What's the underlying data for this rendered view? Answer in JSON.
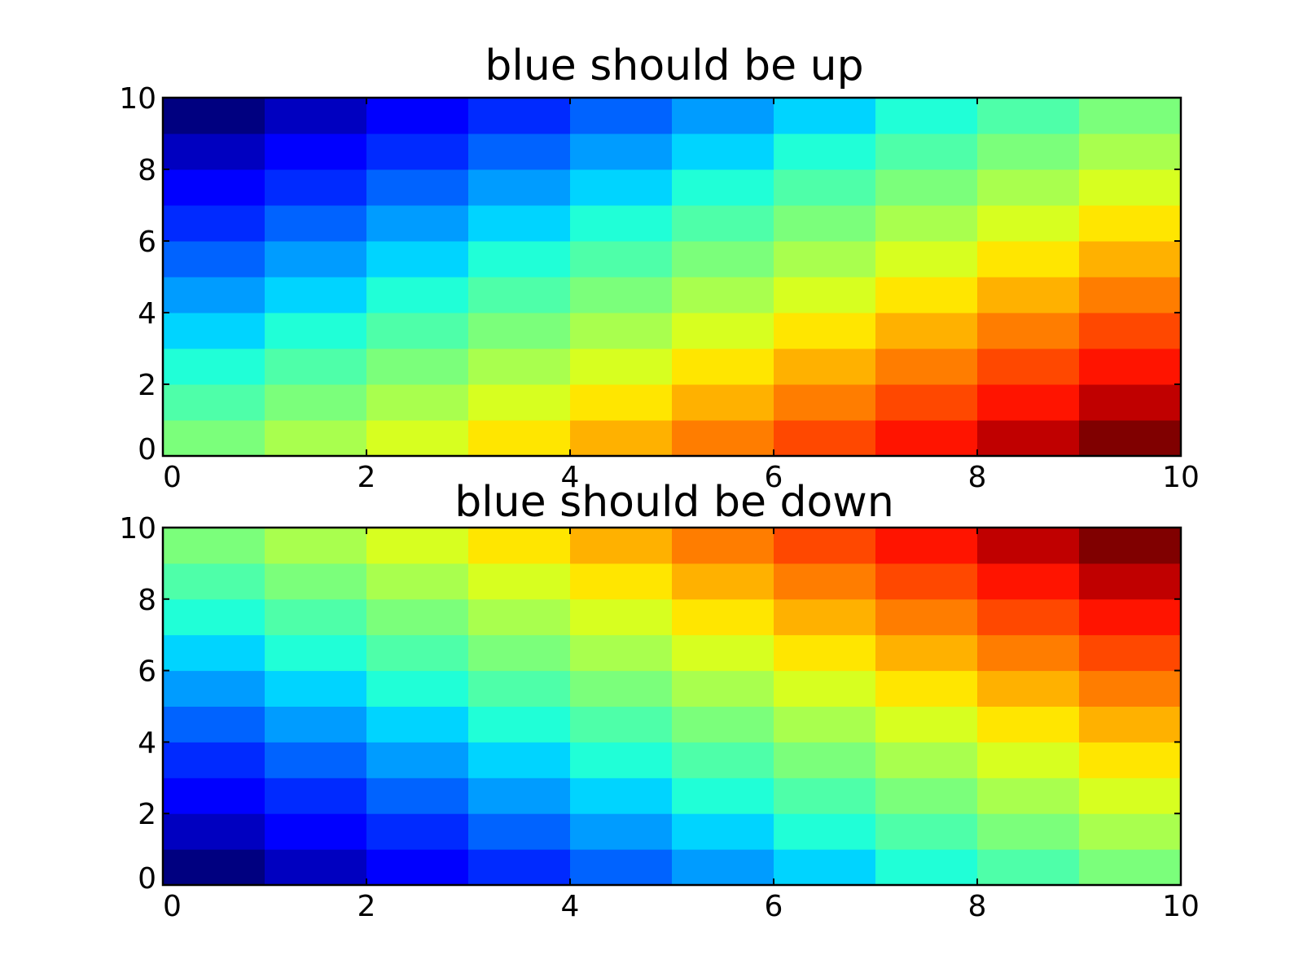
{
  "chart_data": [
    {
      "type": "heatmap",
      "title": "blue should be up",
      "colormap": "jet",
      "origin": "lower",
      "xlim": [
        0,
        10
      ],
      "ylim": [
        0,
        10
      ],
      "xticks": [
        "0",
        "2",
        "4",
        "6",
        "8",
        "10"
      ],
      "yticks": [
        "0",
        "2",
        "4",
        "6",
        "8",
        "10"
      ],
      "grid": false,
      "values": [
        [
          10,
          11,
          12,
          13,
          14,
          15,
          16,
          17,
          18,
          19
        ],
        [
          9,
          10,
          11,
          12,
          13,
          14,
          15,
          16,
          17,
          18
        ],
        [
          8,
          9,
          10,
          11,
          12,
          13,
          14,
          15,
          16,
          17
        ],
        [
          7,
          8,
          9,
          10,
          11,
          12,
          13,
          14,
          15,
          16
        ],
        [
          6,
          7,
          8,
          9,
          10,
          11,
          12,
          13,
          14,
          15
        ],
        [
          5,
          6,
          7,
          8,
          9,
          10,
          11,
          12,
          13,
          14
        ],
        [
          4,
          5,
          6,
          7,
          8,
          9,
          10,
          11,
          12,
          13
        ],
        [
          3,
          4,
          5,
          6,
          7,
          8,
          9,
          10,
          11,
          12
        ],
        [
          2,
          3,
          4,
          5,
          6,
          7,
          8,
          9,
          10,
          11
        ],
        [
          1,
          2,
          3,
          4,
          5,
          6,
          7,
          8,
          9,
          10
        ]
      ],
      "vmin": 1,
      "vmax": 19
    },
    {
      "type": "heatmap",
      "title": "blue should be down",
      "colormap": "jet",
      "origin": "lower",
      "xlim": [
        0,
        10
      ],
      "ylim": [
        0,
        10
      ],
      "xticks": [
        "0",
        "2",
        "4",
        "6",
        "8",
        "10"
      ],
      "yticks": [
        "0",
        "2",
        "4",
        "6",
        "8",
        "10"
      ],
      "grid": false,
      "values": [
        [
          1,
          2,
          3,
          4,
          5,
          6,
          7,
          8,
          9,
          10
        ],
        [
          2,
          3,
          4,
          5,
          6,
          7,
          8,
          9,
          10,
          11
        ],
        [
          3,
          4,
          5,
          6,
          7,
          8,
          9,
          10,
          11,
          12
        ],
        [
          4,
          5,
          6,
          7,
          8,
          9,
          10,
          11,
          12,
          13
        ],
        [
          5,
          6,
          7,
          8,
          9,
          10,
          11,
          12,
          13,
          14
        ],
        [
          6,
          7,
          8,
          9,
          10,
          11,
          12,
          13,
          14,
          15
        ],
        [
          7,
          8,
          9,
          10,
          11,
          12,
          13,
          14,
          15,
          16
        ],
        [
          8,
          9,
          10,
          11,
          12,
          13,
          14,
          15,
          16,
          17
        ],
        [
          9,
          10,
          11,
          12,
          13,
          14,
          15,
          16,
          17,
          18
        ],
        [
          10,
          11,
          12,
          13,
          14,
          15,
          16,
          17,
          18,
          19
        ]
      ],
      "vmin": 1,
      "vmax": 19
    }
  ]
}
